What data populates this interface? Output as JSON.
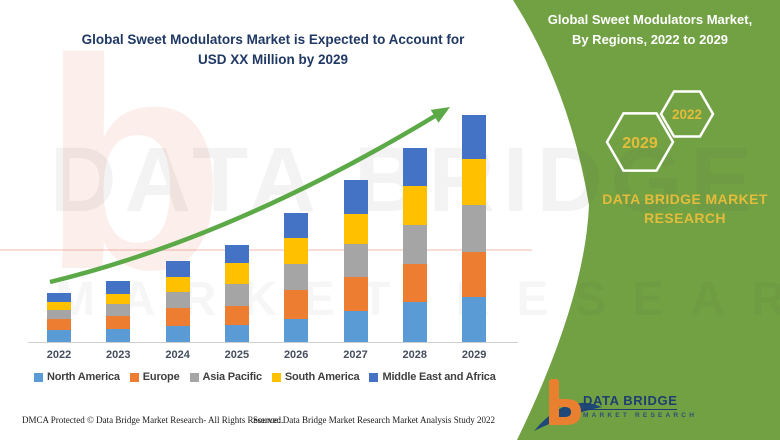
{
  "left_block": {
    "title_line1": "Global Sweet Modulators Market is Expected to Account for",
    "title_line2": "USD XX Million by 2029"
  },
  "panel": {
    "bg_color": "#71A143",
    "title_line1": "Global Sweet Modulators Market,",
    "title_line2": "By Regions, 2022 to 2029",
    "hexagons": [
      {
        "label": "2029"
      },
      {
        "label": "2022"
      }
    ],
    "brand_line1": "DATA BRIDGE MARKET",
    "brand_line2": "RESEARCH",
    "accent_text_color": "#E4BC3B"
  },
  "chart_data": {
    "type": "bar",
    "stacked": true,
    "title": "Global Sweet Modulators Market is Expected to Account for USD XX Million by 2029",
    "xlabel": "",
    "ylabel": "",
    "units": "estimated relative units (actual values shown as USD XX Million, no y-axis displayed)",
    "grid": false,
    "legend_position": "bottom",
    "categories": [
      "2022",
      "2023",
      "2024",
      "2025",
      "2026",
      "2027",
      "2028",
      "2029"
    ],
    "series": [
      {
        "name": "North America",
        "color": "#5B9BD5",
        "values": [
          13,
          14,
          17,
          18,
          24,
          32,
          41,
          46
        ]
      },
      {
        "name": "Europe",
        "color": "#ED7D31",
        "values": [
          11,
          13,
          18,
          19,
          29,
          34,
          38,
          45
        ]
      },
      {
        "name": "Asia Pacific",
        "color": "#A5A5A5",
        "values": [
          9,
          12,
          16,
          22,
          26,
          33,
          39,
          47
        ]
      },
      {
        "name": "South America",
        "color": "#FFC000",
        "values": [
          8,
          10,
          15,
          21,
          26,
          30,
          39,
          46
        ]
      },
      {
        "name": "Middle East and Africa",
        "color": "#4472C4",
        "values": [
          9,
          13,
          16,
          18,
          25,
          34,
          38,
          44
        ]
      }
    ],
    "totals": [
      50,
      62,
      82,
      98,
      130,
      163,
      195,
      228
    ],
    "trend_arrow": true,
    "trend_arrow_color": "#5CA947"
  },
  "footer": {
    "dmca": "DMCA Protected © Data Bridge Market Research- All Rights Reserved.",
    "source": "Source: Data Bridge Market Research Market Analysis Study 2022"
  },
  "logo": {
    "name": "DATA BRIDGE",
    "sub": "MARKET RESEARCH"
  },
  "watermark": {
    "letter": "b",
    "line1": "DATA BRIDGE",
    "line2": "MARKET RESEARCH"
  }
}
